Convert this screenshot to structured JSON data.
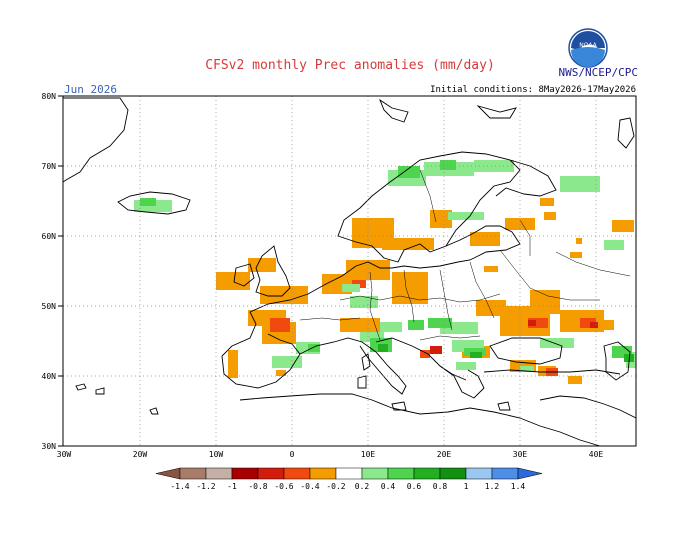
{
  "header": {
    "title": "CFSv2 monthly Prec anomalies (mm/day)",
    "agency": "NWS/NCEP/CPC",
    "month": "Jun 2026",
    "initial_conditions": "Initial conditions: 8May2026-17May2026"
  },
  "logo": {
    "icon": "noaa-logo-icon",
    "text": "NOAA"
  },
  "axes": {
    "lat_labels": [
      "30N",
      "40N",
      "50N",
      "60N",
      "70N",
      "80N"
    ],
    "lon_labels": [
      "30W",
      "20W",
      "10W",
      "0",
      "10E",
      "20E",
      "30E",
      "40E"
    ]
  },
  "colorbar": {
    "labels": [
      "-1.4",
      "-1.2",
      "-1",
      "-0.8",
      "-0.6",
      "-0.4",
      "-0.2",
      "0.2",
      "0.4",
      "0.6",
      "0.8",
      "1",
      "1.2",
      "1.4"
    ],
    "colors": [
      "#8a5540",
      "#a77d6a",
      "#c4b0a6",
      "#a80000",
      "#d21c0c",
      "#f04a10",
      "#f59c00",
      "#ffffff",
      "#8ce88c",
      "#4ed44e",
      "#22b022",
      "#129012",
      "#9ac8f0",
      "#4e8ee6",
      "#2a6adc"
    ]
  },
  "anomaly_colors": {
    "orange": "#f59c00",
    "red_orange": "#f04a10",
    "red": "#d21c0c",
    "light_green": "#8ce88c",
    "green": "#4ed44e",
    "dark_green": "#22b022"
  }
}
